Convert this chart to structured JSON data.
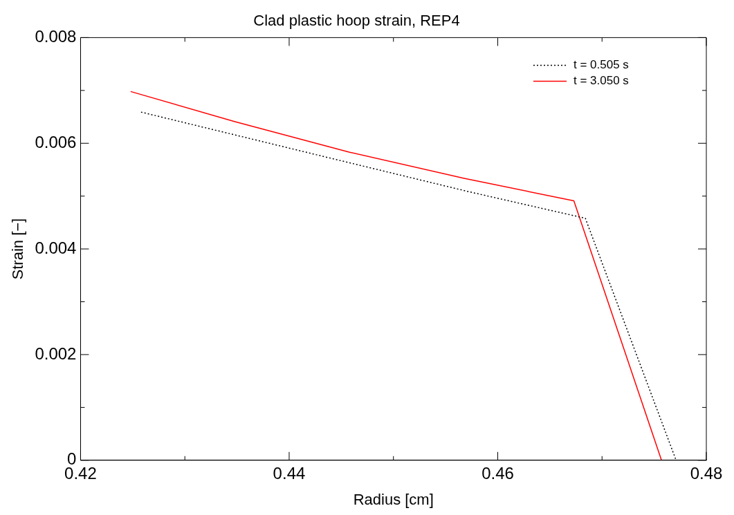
{
  "chart_data": {
    "type": "line",
    "title": "Clad plastic hoop strain, REP4",
    "xlabel": "Radius [cm]",
    "ylabel": "Strain [−]",
    "xlim": [
      0.42,
      0.48
    ],
    "xticks": [
      0.42,
      {
        "value": 0.43,
        "label": null
      },
      0.44,
      {
        "value": 0.45,
        "label": null
      },
      0.46,
      {
        "value": 0.47,
        "label": null
      },
      0.48
    ],
    "ylim": [
      0,
      0.008
    ],
    "yticks": [
      0,
      {
        "value": 0.001,
        "label": null
      },
      0.002,
      {
        "value": 0.003,
        "label": null
      },
      0.004,
      {
        "value": 0.005,
        "label": null
      },
      0.006,
      {
        "value": 0.007,
        "label": null
      },
      0.008
    ],
    "grid": false,
    "legend": "top right",
    "marker": "none",
    "series": [
      {
        "name": "t = 0.505 s",
        "color": "#000000",
        "line_style": "dotted",
        "x": [
          0.4258,
          0.4358,
          0.4458,
          0.4573,
          0.4684,
          0.4771
        ],
        "values": [
          0.00659,
          0.00611,
          0.00563,
          0.00508,
          0.00458,
          0
        ]
      },
      {
        "name": "t = 3.050 s",
        "color": "#ff0000",
        "line_style": "solid",
        "x": [
          0.4248,
          0.4348,
          0.4458,
          0.4567,
          0.4673,
          0.4757
        ],
        "values": [
          0.00698,
          0.00641,
          0.00583,
          0.00534,
          0.00491,
          0
        ]
      }
    ]
  }
}
